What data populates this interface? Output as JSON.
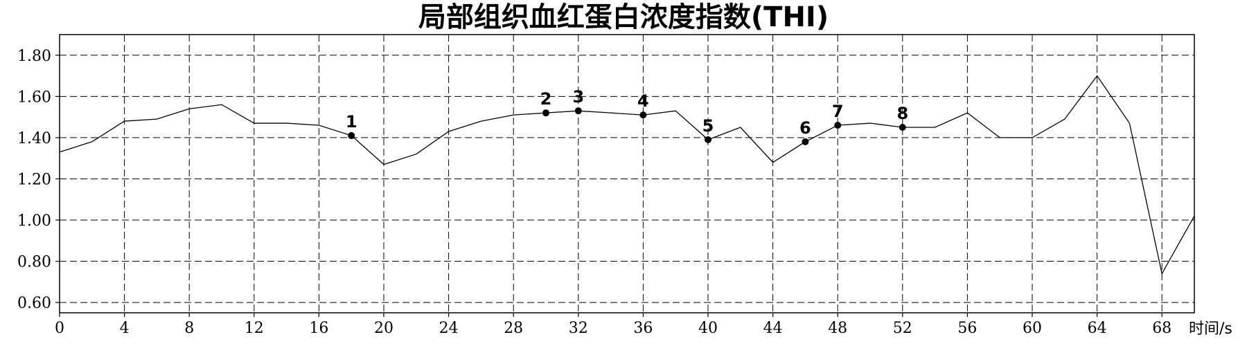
{
  "chart_data": {
    "type": "line",
    "title": "局部组织血红蛋白浓度指数(THI)",
    "xlabel": "时间/s",
    "ylabel": "",
    "xlim": [
      0,
      70
    ],
    "ylim": [
      0.55,
      1.9
    ],
    "xticks": [
      0,
      4,
      8,
      12,
      16,
      20,
      24,
      28,
      32,
      36,
      40,
      44,
      48,
      52,
      56,
      60,
      64,
      68
    ],
    "yticks": [
      "0.60",
      "0.80",
      "1.00",
      "1.20",
      "1.40",
      "1.60",
      "1.80"
    ],
    "grid": true,
    "series": [
      {
        "name": "",
        "x": [
          0,
          2,
          4,
          6,
          8,
          10,
          12,
          14,
          16,
          18,
          20,
          22,
          24,
          26,
          28,
          30,
          32,
          34,
          36,
          38,
          40,
          42,
          44,
          46,
          48,
          50,
          52,
          54,
          56,
          58,
          60,
          62,
          64,
          66,
          68,
          70
        ],
        "y": [
          1.33,
          1.38,
          1.48,
          1.49,
          1.54,
          1.56,
          1.47,
          1.47,
          1.46,
          1.41,
          1.27,
          1.32,
          1.43,
          1.48,
          1.51,
          1.52,
          1.53,
          1.52,
          1.51,
          1.53,
          1.39,
          1.45,
          1.28,
          1.38,
          1.46,
          1.47,
          1.45,
          1.45,
          1.52,
          1.4,
          1.4,
          1.49,
          1.7,
          1.47,
          0.74,
          1.02
        ]
      }
    ],
    "markers": [
      {
        "label": "1",
        "x": 18,
        "y": 1.41
      },
      {
        "label": "2",
        "x": 30,
        "y": 1.52
      },
      {
        "label": "3",
        "x": 32,
        "y": 1.53
      },
      {
        "label": "4",
        "x": 36,
        "y": 1.51
      },
      {
        "label": "5",
        "x": 40,
        "y": 1.39
      },
      {
        "label": "6",
        "x": 46,
        "y": 1.38
      },
      {
        "label": "7",
        "x": 48,
        "y": 1.46
      },
      {
        "label": "8",
        "x": 52,
        "y": 1.45
      }
    ]
  }
}
